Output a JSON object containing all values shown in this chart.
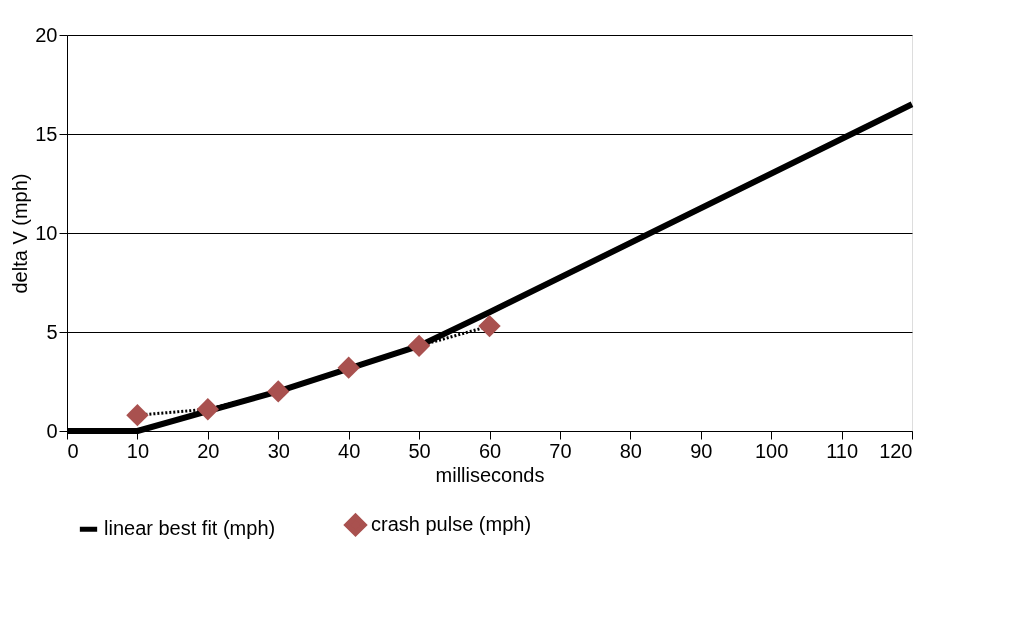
{
  "chart_data": {
    "type": "line",
    "xlabel": "milliseconds",
    "ylabel": "delta V (mph)",
    "xlim": [
      0,
      120
    ],
    "xticks": [
      0,
      10,
      20,
      30,
      40,
      50,
      60,
      70,
      80,
      90,
      100,
      110,
      120
    ],
    "ylim": [
      0,
      20
    ],
    "yticks": [
      0,
      5,
      10,
      15,
      20
    ],
    "grid": "y",
    "legend": "bottom",
    "series": [
      {
        "name": "linear best fit (mph)",
        "color": "#000000",
        "line_style": "solid",
        "marker": "none",
        "x": [
          0,
          10,
          20,
          30,
          50,
          60,
          120
        ],
        "values": [
          0,
          0,
          1.0,
          2.0,
          4.3,
          6.0,
          16.5
        ]
      },
      {
        "name": "crash pulse (mph)",
        "color": "#a9514f",
        "line_style": "dotted",
        "marker": "diamond",
        "x": [
          10,
          20,
          30,
          40,
          50,
          60
        ],
        "values": [
          0.8,
          1.1,
          2.0,
          3.2,
          4.3,
          5.3
        ]
      }
    ]
  }
}
